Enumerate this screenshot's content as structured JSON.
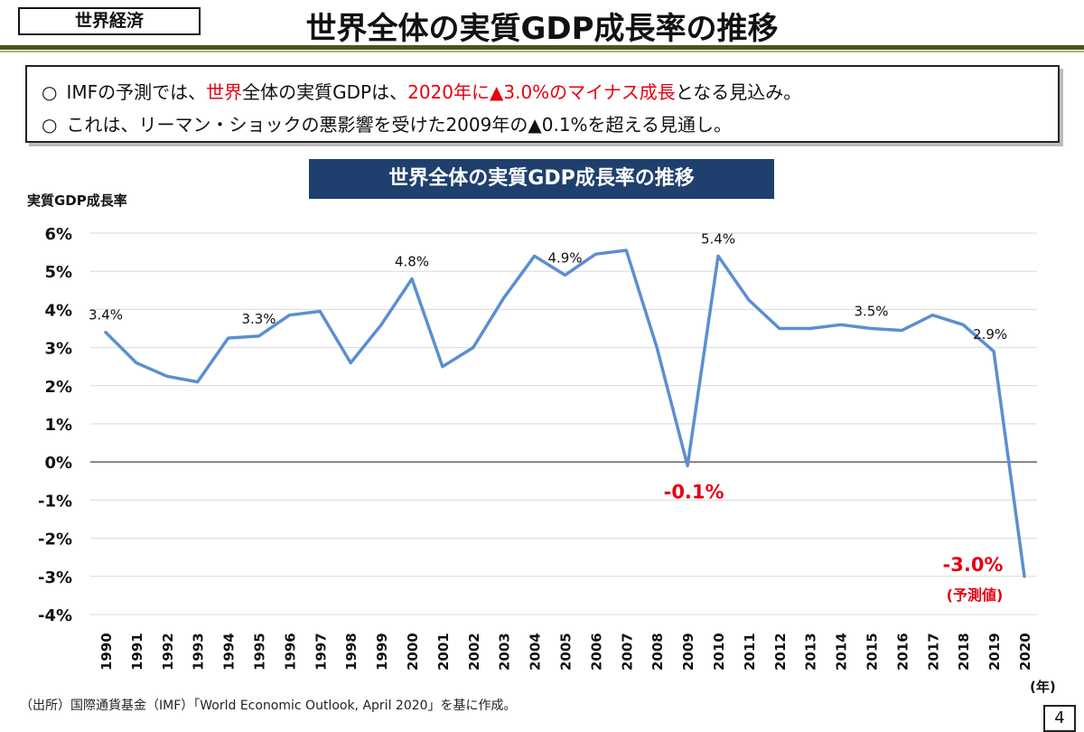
{
  "header": {
    "section_tag": "世界経済",
    "title": "世界全体の実質GDP成長率の推移"
  },
  "summary": {
    "line1": {
      "p1": "IMFの予測では、",
      "p2": "世界",
      "p3": "全体の実質GDPは、",
      "p4": "2020年に▲3.0%のマイナス成長",
      "p5": "となる見込み。"
    },
    "line2": "これは、リーマン・ショックの悪影響を受けた2009年の▲0.1%を超える見通し。",
    "bullet": "○"
  },
  "colors": {
    "line": "#5b8fd0",
    "accent_red": "#e60012",
    "banner": "#1f3f6e",
    "header_rule": "#4b5320"
  },
  "chart_data": {
    "type": "line",
    "title": "世界全体の実質GDP成長率の推移",
    "ylabel": "実質GDP成長率",
    "xunit": "(年)",
    "ylim": [
      -4,
      6
    ],
    "grid": true,
    "yticks": [
      "6%",
      "5%",
      "4%",
      "3%",
      "2%",
      "1%",
      "0%",
      "-1%",
      "-2%",
      "-3%",
      "-4%"
    ],
    "x": [
      "1990",
      "1991",
      "1992",
      "1993",
      "1994",
      "1995",
      "1996",
      "1997",
      "1998",
      "1999",
      "2000",
      "2001",
      "2002",
      "2003",
      "2004",
      "2005",
      "2006",
      "2007",
      "2008",
      "2009",
      "2010",
      "2011",
      "2012",
      "2013",
      "2014",
      "2015",
      "2016",
      "2017",
      "2018",
      "2019",
      "2020"
    ],
    "series": [
      {
        "values": [
          3.4,
          2.6,
          2.25,
          2.1,
          3.25,
          3.3,
          3.85,
          3.95,
          2.6,
          3.6,
          4.8,
          2.5,
          3.0,
          4.3,
          5.4,
          4.9,
          5.45,
          5.55,
          3.0,
          -0.1,
          5.4,
          4.25,
          3.5,
          3.5,
          3.6,
          3.5,
          3.45,
          3.85,
          3.6,
          2.9,
          -3.0
        ]
      }
    ],
    "annotations": [
      {
        "index": 0,
        "text": "3.4%",
        "style": "normal"
      },
      {
        "index": 5,
        "text": "3.3%",
        "style": "normal"
      },
      {
        "index": 10,
        "text": "4.8%",
        "style": "normal"
      },
      {
        "index": 15,
        "text": "4.9%",
        "style": "normal"
      },
      {
        "index": 19,
        "text": "-0.1%",
        "style": "red"
      },
      {
        "index": 20,
        "text": "5.4%",
        "style": "normal"
      },
      {
        "index": 25,
        "text": "3.5%",
        "style": "normal"
      },
      {
        "index": 29,
        "text": "2.9%",
        "style": "normal"
      },
      {
        "index": 30,
        "text": "-3.0%",
        "style": "red"
      },
      {
        "index": 30,
        "text": "(予測値)",
        "style": "red-small"
      }
    ]
  },
  "footer": {
    "source": "（出所）国際通貨基金（IMF）「World Economic Outlook, April 2020」を基に作成。",
    "page_number": "4"
  }
}
